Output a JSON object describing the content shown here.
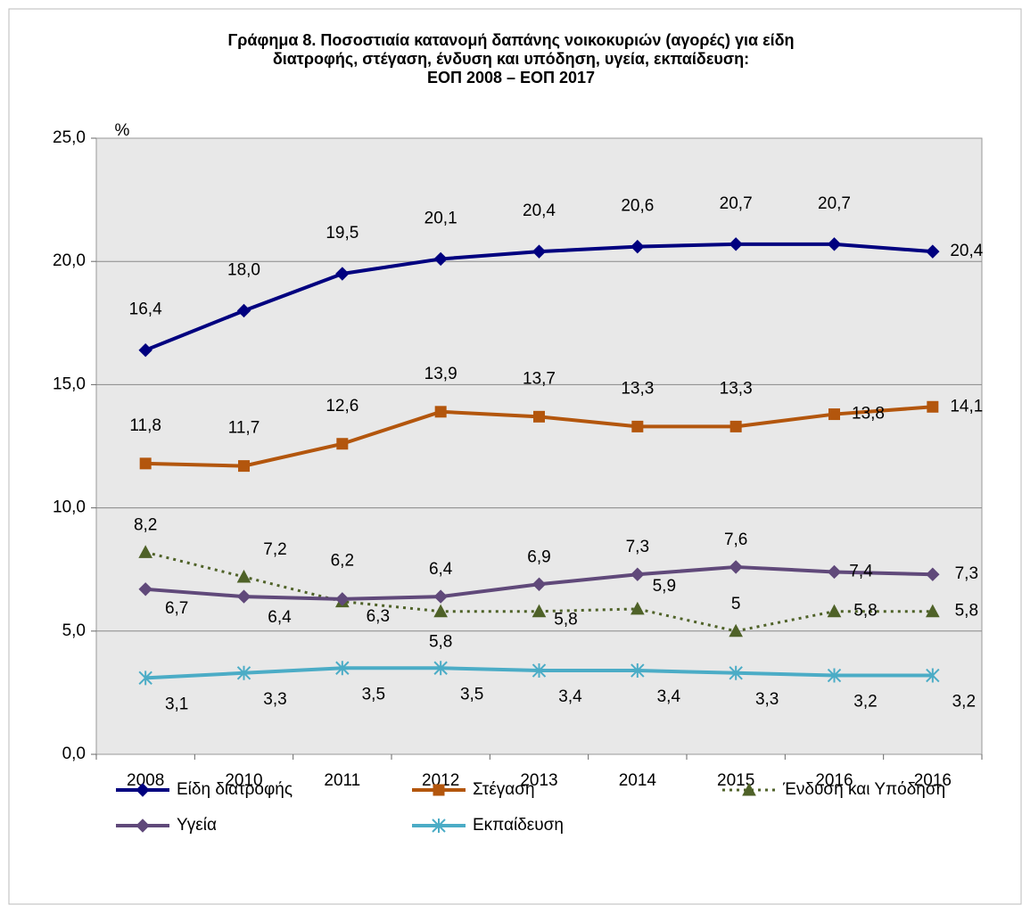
{
  "chart_data": {
    "type": "line",
    "title": [
      "Γράφημα 8. Ποσοστιαία κατανομή δαπάνης νοικοκυριών (αγορές) για είδη",
      "διατροφής, στέγαση, ένδυση και υπόδηση, υγεία, εκπαίδευση:",
      "ΕΟΠ 2008 – ΕΟΠ 2017"
    ],
    "y_label": "%",
    "categories": [
      "2008",
      "2010",
      "2011",
      "2012",
      "2013",
      "2014",
      "2015",
      "2016",
      "2016"
    ],
    "ylim": [
      0,
      25
    ],
    "yticks": [
      {
        "value": 0,
        "label": "0,0"
      },
      {
        "value": 5,
        "label": "5,0"
      },
      {
        "value": 10,
        "label": "10,0"
      },
      {
        "value": 15,
        "label": "15,0"
      },
      {
        "value": 20,
        "label": "20,0"
      },
      {
        "value": 25,
        "label": "25,0"
      }
    ],
    "grid": true,
    "series": [
      {
        "name": "Είδη διατροφής",
        "color": "#00007f",
        "marker": "diamond",
        "dash": "solid",
        "values": [
          16.4,
          18.0,
          19.5,
          20.1,
          20.4,
          20.6,
          20.7,
          20.7,
          20.4
        ],
        "value_labels": [
          "16,4",
          "18,0",
          "19,5",
          "20,1",
          "20,4",
          "20,6",
          "20,7",
          "20,7",
          "20,4"
        ]
      },
      {
        "name": "Στέγαση",
        "color": "#b3560d",
        "marker": "square",
        "dash": "solid",
        "values": [
          11.8,
          11.7,
          12.6,
          13.9,
          13.7,
          13.3,
          13.3,
          13.8,
          14.1
        ],
        "value_labels": [
          "11,8",
          "11,7",
          "12,6",
          "13,9",
          "13,7",
          "13,3",
          "13,3",
          "13,8",
          "14,1"
        ]
      },
      {
        "name": "Ένδυση και Υπόδηση",
        "color": "#4f6228",
        "marker": "triangle",
        "dash": "dotted",
        "values": [
          8.2,
          7.2,
          6.2,
          5.8,
          5.8,
          5.9,
          5,
          5.8,
          5.8
        ],
        "value_labels": [
          "8,2",
          "7,2",
          "6,2",
          "5,8",
          "5,8",
          "5,9",
          "5",
          "5,8",
          "5,8"
        ]
      },
      {
        "name": "Υγεία",
        "color": "#60497a",
        "marker": "diamond",
        "dash": "solid",
        "values": [
          6.7,
          6.4,
          6.3,
          6.4,
          6.9,
          7.3,
          7.6,
          7.4,
          7.3
        ],
        "value_labels": [
          "6,7",
          "6,4",
          "6,3",
          "6,4",
          "6,9",
          "7,3",
          "7,6",
          "7,4",
          "7,3"
        ]
      },
      {
        "name": "Εκπαίδευση",
        "color": "#4bacc6",
        "marker": "star",
        "dash": "solid",
        "values": [
          3.1,
          3.3,
          3.5,
          3.5,
          3.4,
          3.4,
          3.3,
          3.2,
          3.2
        ],
        "value_labels": [
          "3,1",
          "3,3",
          "3,5",
          "3,5",
          "3,4",
          "3,4",
          "3,3",
          "3,2",
          "3,2"
        ]
      }
    ]
  }
}
